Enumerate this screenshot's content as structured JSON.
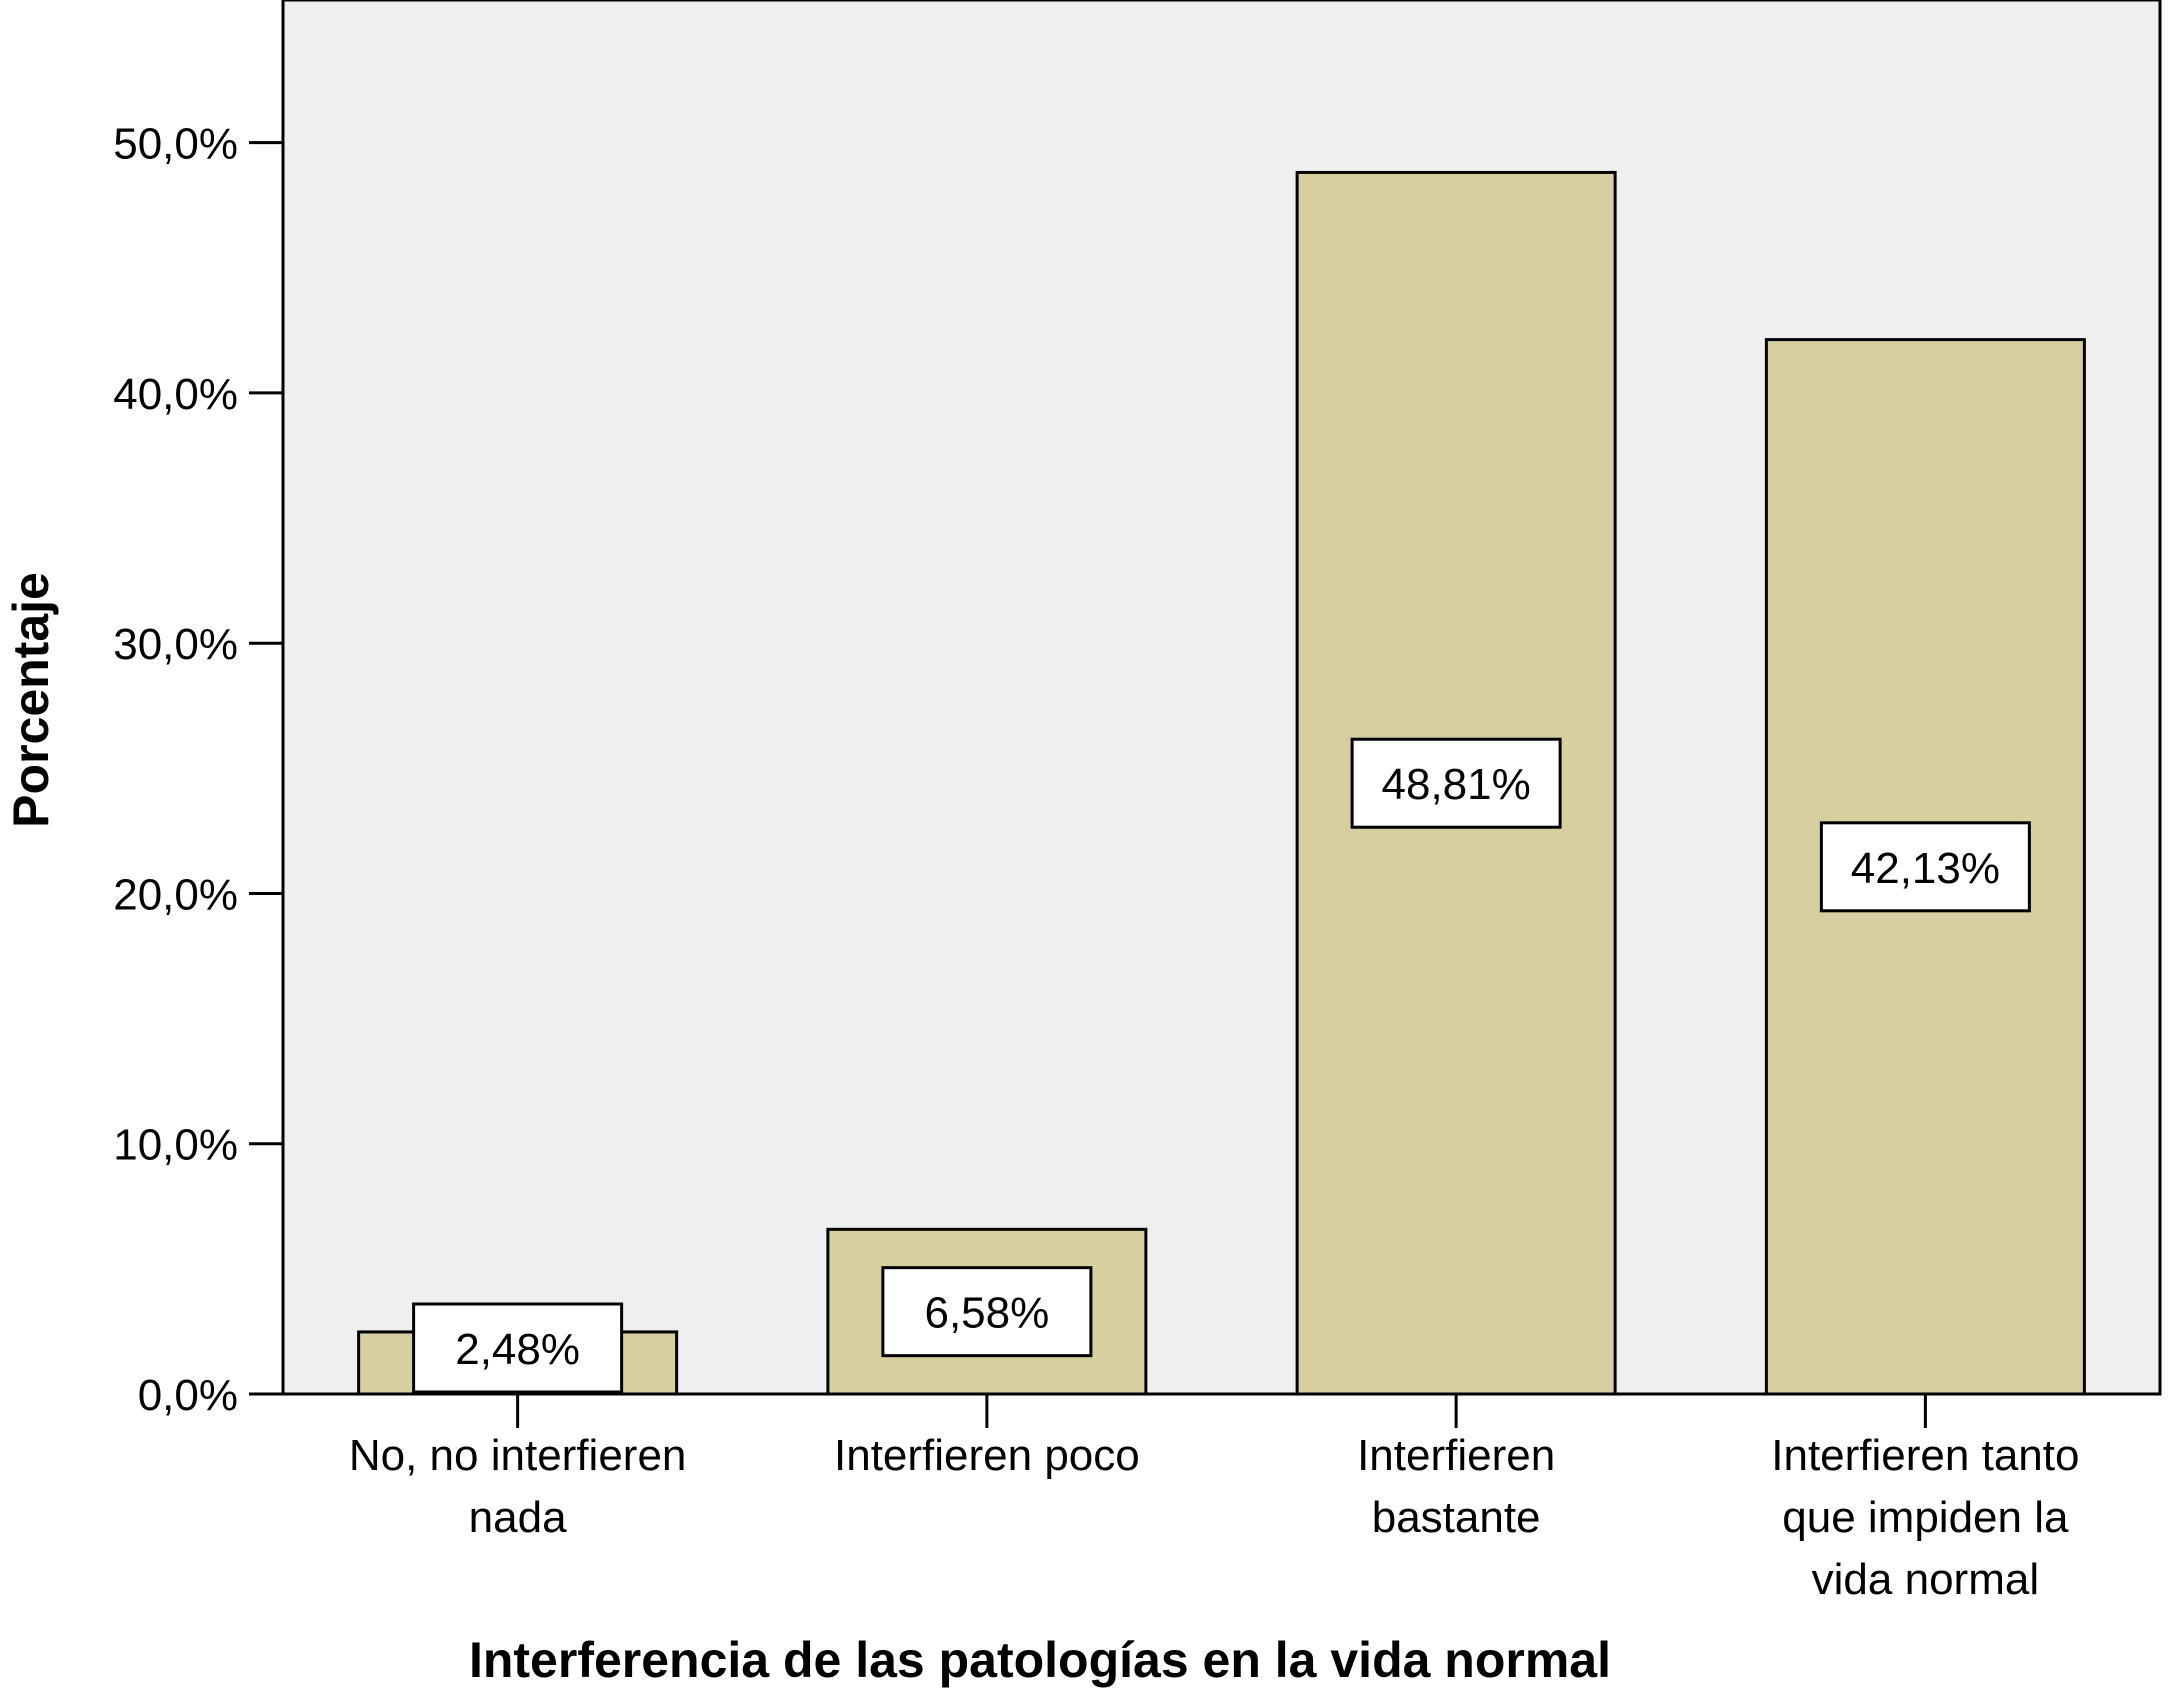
{
  "chart_data": {
    "type": "bar",
    "categories": [
      [
        "No, no interfieren",
        "nada"
      ],
      [
        "Interfieren poco"
      ],
      [
        "Interfieren",
        "bastante"
      ],
      [
        "Interfieren tanto",
        "que impiden la",
        "vida normal"
      ]
    ],
    "values": [
      2.48,
      6.58,
      48.81,
      42.13
    ],
    "data_labels": [
      "2,48%",
      "6,58%",
      "48,81%",
      "42,13%"
    ],
    "xlabel": "Interferencia de las patologías en la vida normal",
    "ylabel": "Porcentaje",
    "yticks": [
      0,
      10,
      20,
      30,
      40,
      50
    ],
    "ytick_labels": [
      "0,0%",
      "10,0%",
      "20,0%",
      "30,0%",
      "40,0%",
      "50,0%"
    ],
    "ylim": [
      0,
      55.7
    ],
    "grid": false,
    "legend": "none",
    "colors": {
      "plot_background": "#efefef",
      "bar_fill": "#d8cfa0",
      "bar_stroke": "#000000",
      "label_box": "#ffffff"
    }
  }
}
